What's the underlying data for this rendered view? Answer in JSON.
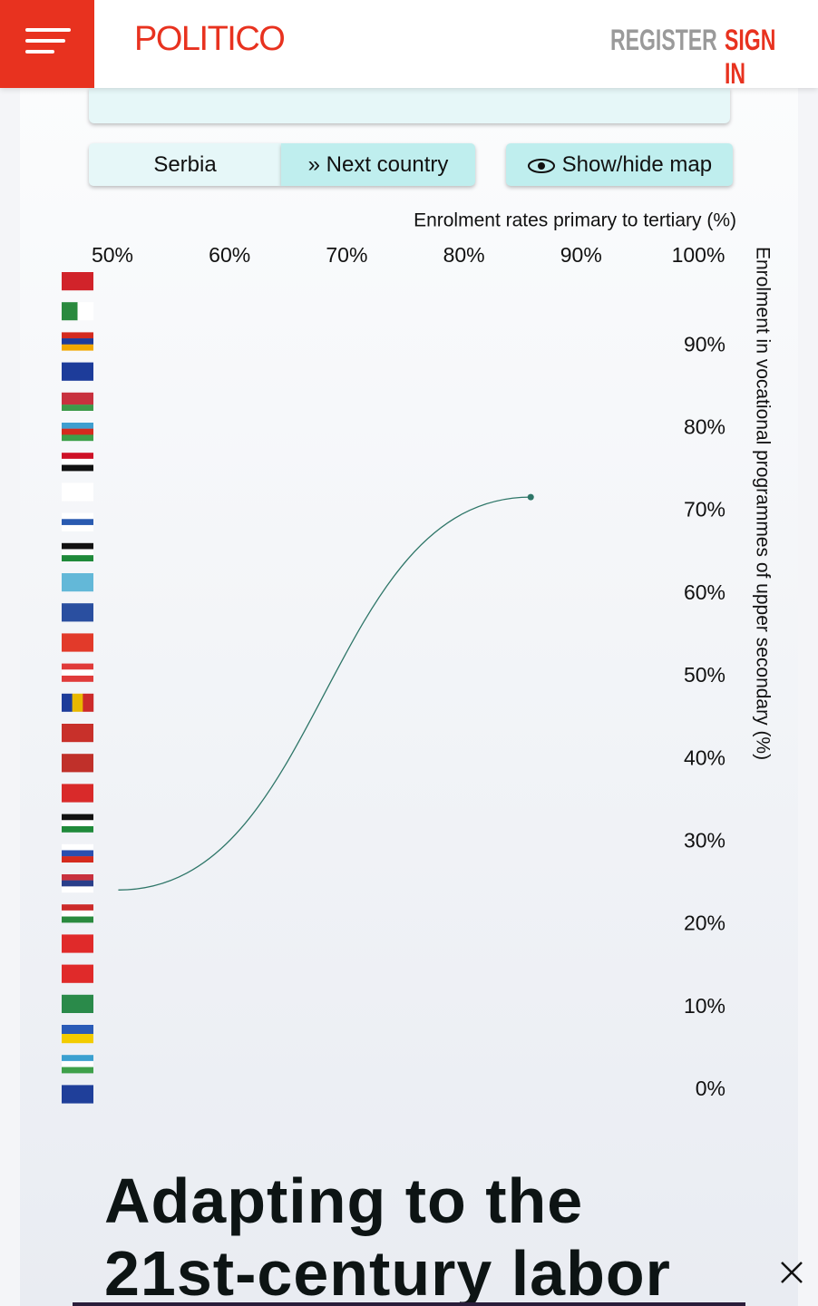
{
  "header": {
    "logo": "POLITICO",
    "register": "REGISTER",
    "sign_in": "SIGN IN"
  },
  "controls": {
    "country": "Serbia",
    "next": "Next country",
    "map_toggle": "Show/hide map"
  },
  "chart_data": {
    "type": "line",
    "x_label": "Enrolment rates primary to tertiary (%)",
    "y_label": "Enrolment in vocational programmes of upper secondary (%)",
    "x": [
      50.5,
      85.7
    ],
    "series": [
      {
        "color": "#2e7668",
        "values": [
          24.2,
          71.7
        ]
      }
    ],
    "xlim": [
      50,
      100
    ],
    "xticks": [
      {
        "value": 50,
        "label": "50%"
      },
      {
        "value": 60,
        "label": "60%"
      },
      {
        "value": 70,
        "label": "70%"
      },
      {
        "value": 80,
        "label": "80%"
      },
      {
        "value": 90,
        "label": "90%"
      },
      {
        "value": 100,
        "label": "100%"
      }
    ],
    "ylim": [
      0,
      100
    ],
    "yticks": [
      {
        "value": 0,
        "label": "0%"
      },
      {
        "value": 10,
        "label": "10%"
      },
      {
        "value": 20,
        "label": "20%"
      },
      {
        "value": 30,
        "label": "30%"
      },
      {
        "value": 40,
        "label": "40%"
      },
      {
        "value": 50,
        "label": "50%"
      },
      {
        "value": 60,
        "label": "60%"
      },
      {
        "value": 70,
        "label": "70%"
      },
      {
        "value": 80,
        "label": "80%"
      },
      {
        "value": 90,
        "label": "90%"
      }
    ],
    "grid": false
  },
  "article": {
    "headline": "Adapting to the 21st-century labor"
  }
}
